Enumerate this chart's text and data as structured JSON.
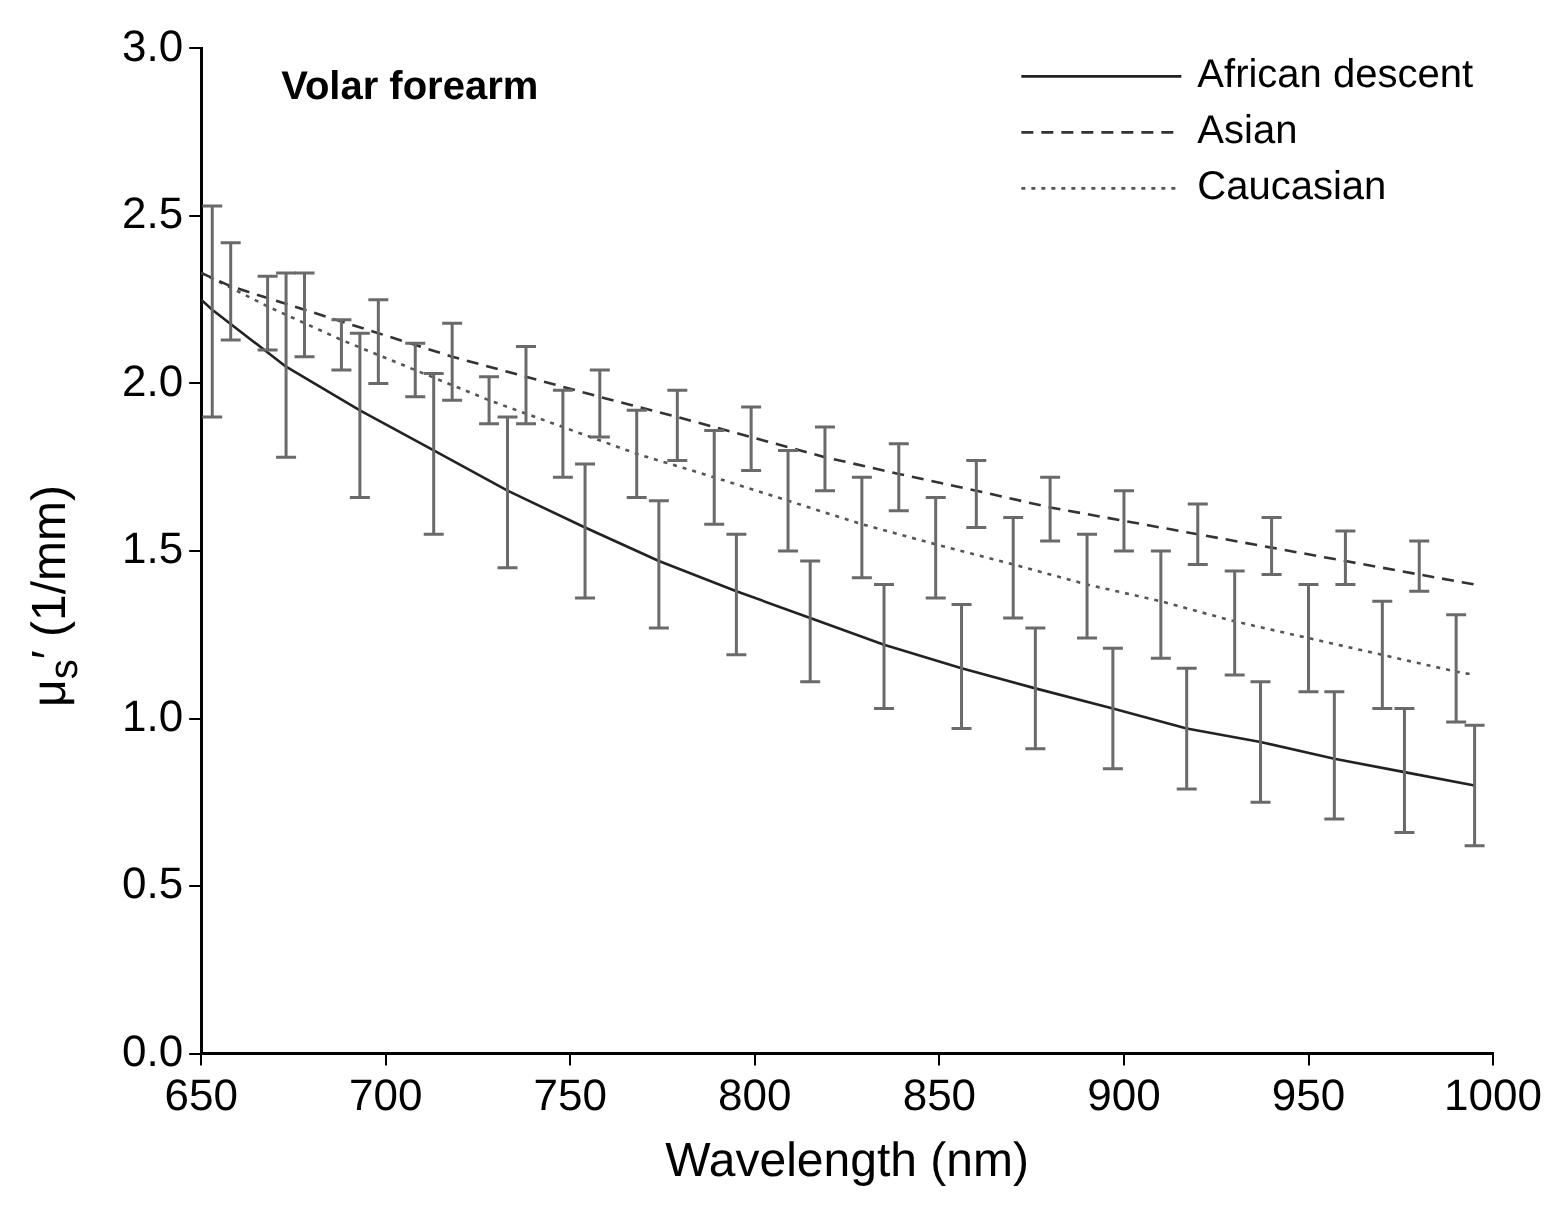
{
  "chart_data": {
    "type": "line",
    "xlabel": "Wavelength (nm)",
    "ylabel": "μ$_{s}$′ (1/mm)",
    "annotations": [
      "Volar forearm"
    ],
    "xlim": [
      650,
      1000
    ],
    "xticks": [
      650,
      700,
      750,
      800,
      850,
      900,
      950,
      1000
    ],
    "ylim": [
      0,
      3
    ],
    "yticks": [
      {
        "value": 0,
        "label": "0.0"
      },
      0.5,
      {
        "value": 1,
        "label": "1.0"
      },
      1.5,
      {
        "value": 2,
        "label": "2.0"
      },
      2.5,
      {
        "value": 3,
        "label": "3.0"
      }
    ],
    "grid": false,
    "legend": "top right",
    "marker": "none",
    "series": [
      {
        "name": "African descent",
        "color": "#222222",
        "line_style": "solid",
        "x": [
          650,
          653,
          673,
          693,
          713,
          733,
          754,
          774,
          795,
          815,
          835,
          856,
          876,
          897,
          917,
          937,
          957,
          976,
          995
        ],
        "values": [
          2.25,
          2.22,
          2.05,
          1.92,
          1.8,
          1.68,
          1.57,
          1.47,
          1.38,
          1.3,
          1.22,
          1.15,
          1.09,
          1.03,
          0.97,
          0.93,
          0.88,
          0.84,
          0.8
        ],
        "errors": [
          null,
          [
            1.9,
            2.53
          ],
          [
            1.78,
            2.33
          ],
          [
            1.66,
            2.15
          ],
          [
            1.55,
            2.03
          ],
          [
            1.45,
            1.9
          ],
          [
            1.36,
            1.76
          ],
          [
            1.27,
            1.65
          ],
          [
            1.19,
            1.55
          ],
          [
            1.11,
            1.47
          ],
          [
            1.03,
            1.4
          ],
          [
            0.97,
            1.34
          ],
          [
            0.91,
            1.27
          ],
          [
            0.85,
            1.21
          ],
          [
            0.79,
            1.15
          ],
          [
            0.75,
            1.11
          ],
          [
            0.7,
            1.08
          ],
          [
            0.66,
            1.03
          ],
          [
            0.62,
            0.98
          ]
        ]
      },
      {
        "name": "Asian",
        "color": "#333333",
        "line_style": "dashed",
        "x": [
          650,
          658,
          678,
          698,
          718,
          738,
          758,
          779,
          799,
          819,
          839,
          860,
          880,
          900,
          920,
          940,
          960,
          980,
          995
        ],
        "values": [
          2.33,
          2.29,
          2.22,
          2.15,
          2.08,
          2.02,
          1.96,
          1.9,
          1.84,
          1.78,
          1.73,
          1.68,
          1.63,
          1.59,
          1.55,
          1.51,
          1.47,
          1.43,
          1.4
        ],
        "errors": [
          null,
          [
            2.13,
            2.42
          ],
          [
            2.08,
            2.33
          ],
          [
            2,
            2.25
          ],
          [
            1.95,
            2.18
          ],
          [
            1.88,
            2.11
          ],
          [
            1.84,
            2.04
          ],
          [
            1.77,
            1.98
          ],
          [
            1.74,
            1.93
          ],
          [
            1.68,
            1.87
          ],
          [
            1.62,
            1.82
          ],
          [
            1.57,
            1.77
          ],
          [
            1.53,
            1.72
          ],
          [
            1.5,
            1.68
          ],
          [
            1.46,
            1.64
          ],
          [
            1.43,
            1.6
          ],
          [
            1.4,
            1.56
          ],
          [
            1.38,
            1.53
          ],
          null
        ]
      },
      {
        "name": "Caucasian",
        "color": "#555555",
        "line_style": "dotted",
        "x": [
          650,
          668,
          688,
          708,
          728,
          748,
          768,
          789,
          809,
          829,
          849,
          870,
          890,
          910,
          930,
          950,
          970,
          990,
          995
        ],
        "values": [
          2.33,
          2.23,
          2.13,
          2.04,
          1.95,
          1.87,
          1.79,
          1.72,
          1.65,
          1.58,
          1.52,
          1.46,
          1.4,
          1.35,
          1.29,
          1.24,
          1.19,
          1.14,
          1.13
        ],
        "errors": [
          null,
          [
            2.1,
            2.32
          ],
          [
            2.04,
            2.19
          ],
          [
            1.96,
            2.12
          ],
          [
            1.88,
            2.02
          ],
          [
            1.72,
            1.98
          ],
          [
            1.66,
            1.92
          ],
          [
            1.58,
            1.86
          ],
          [
            1.5,
            1.8
          ],
          [
            1.42,
            1.72
          ],
          [
            1.36,
            1.66
          ],
          [
            1.3,
            1.6
          ],
          [
            1.24,
            1.55
          ],
          [
            1.18,
            1.5
          ],
          [
            1.13,
            1.44
          ],
          [
            1.08,
            1.4
          ],
          [
            1.03,
            1.35
          ],
          [
            0.99,
            1.31
          ],
          null
        ]
      }
    ]
  }
}
